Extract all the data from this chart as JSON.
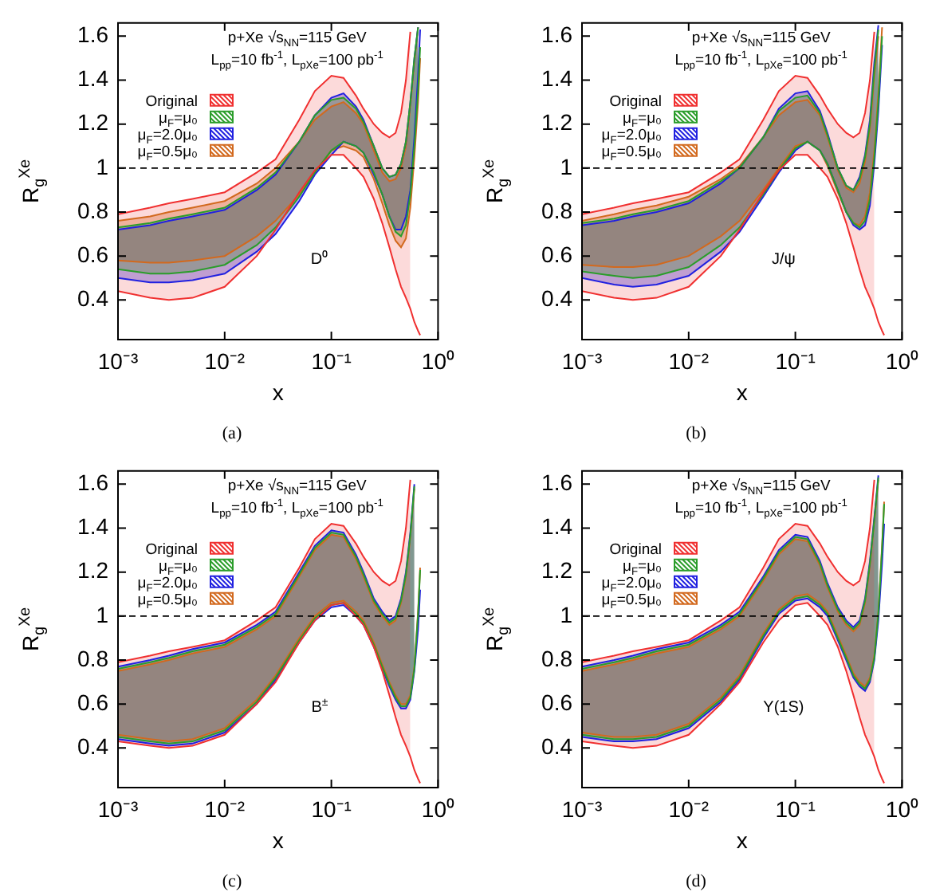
{
  "chart_data": [
    {
      "type": "line",
      "xlabel": "x",
      "ylabel": "R$_{g}$$^{Xe}$",
      "log": "x",
      "grid": false,
      "legend": "top left",
      "xlim": [
        0.001,
        1
      ],
      "ylim": [
        0.22,
        1.66
      ],
      "xticks": [
        {
          "value": 0.001,
          "label": "10⁻³"
        },
        {
          "value": 0.01,
          "label": "10⁻²"
        },
        {
          "value": 0.1,
          "label": "10⁻¹"
        },
        {
          "value": 1,
          "label": "10⁰"
        }
      ],
      "yticks": [
        0.4,
        0.6,
        0.8,
        1,
        1.2,
        1.4,
        1.6
      ],
      "annotations": [
        "p+Xe √s$_{NN}$=115 GeV",
        "L$_{pp}$=10 fb$^{-1}$, L$_{pXe}$=100 pb$^{-1}$",
        "D⁰",
        "(a)"
      ],
      "ref_lines": [
        {
          "axis": "y",
          "value": 1,
          "color": "#000000",
          "line_style": "dashed"
        }
      ],
      "x": [
        0.001,
        0.002,
        0.003,
        0.005,
        0.01,
        0.02,
        0.03,
        0.05,
        0.07,
        0.1,
        0.13,
        0.17,
        0.2,
        0.25,
        0.3,
        0.35,
        0.4,
        0.45,
        0.5,
        0.55,
        0.6,
        0.65,
        0.68
      ],
      "series": [
        {
          "color": "#f03030",
          "values": [
            0.44,
            0.41,
            0.4,
            0.41,
            0.46,
            0.6,
            0.72,
            0.89,
            0.99,
            1.06,
            1.06,
            1.0,
            0.96,
            0.86,
            0.75,
            0.64,
            0.54,
            0.46,
            0.41,
            0.36,
            0.3,
            0.26,
            0.24
          ]
        },
        {
          "type": "area",
          "name": "Original",
          "color": "#f03030",
          "values": [
            0.79,
            0.82,
            0.84,
            0.86,
            0.89,
            0.98,
            1.04,
            1.22,
            1.35,
            1.42,
            1.41,
            1.33,
            1.27,
            1.2,
            1.16,
            1.14,
            1.16,
            1.25,
            1.4,
            1.62,
            null,
            null,
            null
          ]
        },
        {
          "color": "#2a9d2a",
          "values": [
            0.54,
            0.52,
            0.52,
            0.53,
            0.56,
            0.65,
            0.73,
            0.87,
            0.98,
            1.08,
            1.12,
            1.1,
            1.07,
            0.98,
            0.88,
            0.78,
            0.71,
            0.69,
            0.74,
            0.88,
            1.1,
            1.35,
            1.55
          ]
        },
        {
          "type": "area",
          "name": "μ$_{F}$=μ₀",
          "color": "#2a9d2a",
          "values": [
            0.73,
            0.75,
            0.77,
            0.79,
            0.82,
            0.91,
            0.98,
            1.12,
            1.24,
            1.31,
            1.32,
            1.27,
            1.21,
            1.1,
            1.0,
            0.96,
            0.97,
            1.02,
            1.12,
            1.3,
            1.5,
            1.64,
            null
          ]
        },
        {
          "color": "#2020e0",
          "values": [
            0.5,
            0.48,
            0.48,
            0.49,
            0.52,
            0.62,
            0.7,
            0.85,
            0.97,
            1.06,
            1.12,
            1.1,
            1.07,
            0.97,
            0.88,
            0.78,
            0.72,
            0.72,
            0.78,
            0.9,
            1.14,
            1.42,
            1.63
          ]
        },
        {
          "type": "area",
          "name": "μ$_{F}$=2.0μ₀",
          "color": "#2020e0",
          "values": [
            0.72,
            0.74,
            0.76,
            0.78,
            0.81,
            0.9,
            0.97,
            1.12,
            1.24,
            1.32,
            1.34,
            1.28,
            1.22,
            1.1,
            1.0,
            0.96,
            0.97,
            1.02,
            1.12,
            1.3,
            1.5,
            1.64,
            null
          ]
        },
        {
          "color": "#d2691e",
          "values": [
            0.58,
            0.57,
            0.57,
            0.58,
            0.6,
            0.69,
            0.76,
            0.88,
            0.98,
            1.08,
            1.1,
            1.08,
            1.05,
            0.95,
            0.84,
            0.74,
            0.67,
            0.64,
            0.68,
            0.82,
            1.05,
            1.3,
            1.5
          ]
        },
        {
          "type": "area",
          "name": "μ$_{F}$=0.5μ₀",
          "color": "#d2691e",
          "values": [
            0.76,
            0.78,
            0.8,
            0.82,
            0.85,
            0.93,
            1.0,
            1.12,
            1.22,
            1.28,
            1.3,
            1.25,
            1.2,
            1.08,
            0.98,
            0.94,
            0.95,
            1.0,
            1.1,
            1.28,
            1.48,
            1.64,
            null
          ]
        }
      ]
    },
    {
      "type": "line",
      "xlabel": "x",
      "ylabel": "R$_{g}$$^{Xe}$",
      "log": "x",
      "grid": false,
      "legend": "top left",
      "xlim": [
        0.001,
        1
      ],
      "ylim": [
        0.22,
        1.66
      ],
      "xticks": [
        {
          "value": 0.001,
          "label": "10⁻³"
        },
        {
          "value": 0.01,
          "label": "10⁻²"
        },
        {
          "value": 0.1,
          "label": "10⁻¹"
        },
        {
          "value": 1,
          "label": "10⁰"
        }
      ],
      "yticks": [
        0.4,
        0.6,
        0.8,
        1,
        1.2,
        1.4,
        1.6
      ],
      "annotations": [
        "p+Xe √s$_{NN}$=115 GeV",
        "L$_{pp}$=10 fb$^{-1}$, L$_{pXe}$=100 pb$^{-1}$",
        "J/ψ",
        "(b)"
      ],
      "ref_lines": [
        {
          "axis": "y",
          "value": 1,
          "color": "#000000",
          "line_style": "dashed"
        }
      ],
      "x": [
        0.001,
        0.002,
        0.003,
        0.005,
        0.01,
        0.02,
        0.03,
        0.05,
        0.07,
        0.1,
        0.13,
        0.17,
        0.2,
        0.25,
        0.3,
        0.35,
        0.4,
        0.45,
        0.5,
        0.55,
        0.6,
        0.65,
        0.68
      ],
      "series": [
        {
          "color": "#f03030",
          "values": [
            0.44,
            0.41,
            0.4,
            0.41,
            0.46,
            0.6,
            0.72,
            0.89,
            0.99,
            1.06,
            1.06,
            1.0,
            0.96,
            0.86,
            0.75,
            0.64,
            0.54,
            0.46,
            0.41,
            0.36,
            0.3,
            0.26,
            0.24
          ]
        },
        {
          "type": "area",
          "name": "Original",
          "color": "#f03030",
          "values": [
            0.79,
            0.82,
            0.84,
            0.86,
            0.89,
            0.98,
            1.04,
            1.22,
            1.35,
            1.42,
            1.41,
            1.33,
            1.27,
            1.2,
            1.16,
            1.14,
            1.16,
            1.25,
            1.4,
            1.62,
            null,
            null,
            null
          ]
        },
        {
          "color": "#2a9d2a",
          "values": [
            0.53,
            0.51,
            0.5,
            0.51,
            0.55,
            0.65,
            0.73,
            0.88,
            0.99,
            1.09,
            1.12,
            1.08,
            1.02,
            0.9,
            0.8,
            0.75,
            0.73,
            0.76,
            0.86,
            1.05,
            1.3,
            1.6,
            null
          ]
        },
        {
          "type": "area",
          "name": "μ$_{F}$=μ₀",
          "color": "#2a9d2a",
          "values": [
            0.75,
            0.77,
            0.79,
            0.81,
            0.85,
            0.94,
            1.0,
            1.14,
            1.26,
            1.32,
            1.33,
            1.25,
            1.15,
            1.0,
            0.92,
            0.9,
            0.95,
            1.05,
            1.2,
            1.45,
            1.63,
            null,
            null
          ]
        },
        {
          "color": "#2020e0",
          "values": [
            0.5,
            0.47,
            0.46,
            0.47,
            0.51,
            0.62,
            0.71,
            0.87,
            0.98,
            1.08,
            1.12,
            1.08,
            1.02,
            0.9,
            0.8,
            0.74,
            0.72,
            0.74,
            0.83,
            1.02,
            1.26,
            1.56,
            null
          ]
        },
        {
          "type": "area",
          "name": "μ$_{F}$=2.0μ₀",
          "color": "#2020e0",
          "values": [
            0.74,
            0.76,
            0.78,
            0.8,
            0.84,
            0.93,
            1.0,
            1.14,
            1.27,
            1.34,
            1.35,
            1.26,
            1.16,
            1.0,
            0.92,
            0.9,
            0.96,
            1.06,
            1.22,
            1.48,
            1.65,
            null,
            null
          ]
        },
        {
          "color": "#d2691e",
          "values": [
            0.56,
            0.55,
            0.55,
            0.56,
            0.6,
            0.69,
            0.76,
            0.9,
            1.0,
            1.1,
            1.12,
            1.08,
            1.01,
            0.89,
            0.8,
            0.75,
            0.74,
            0.78,
            0.89,
            1.08,
            1.34,
            1.64,
            null
          ]
        },
        {
          "type": "area",
          "name": "μ$_{F}$=0.5μ₀",
          "color": "#d2691e",
          "values": [
            0.76,
            0.79,
            0.81,
            0.83,
            0.87,
            0.95,
            1.01,
            1.14,
            1.24,
            1.3,
            1.31,
            1.24,
            1.14,
            0.99,
            0.91,
            0.89,
            0.93,
            1.03,
            1.18,
            1.42,
            1.6,
            null,
            null
          ]
        }
      ]
    },
    {
      "type": "line",
      "xlabel": "x",
      "ylabel": "R$_{g}$$^{Xe}$",
      "log": "x",
      "grid": false,
      "legend": "top left",
      "xlim": [
        0.001,
        1
      ],
      "ylim": [
        0.22,
        1.66
      ],
      "xticks": [
        {
          "value": 0.001,
          "label": "10⁻³"
        },
        {
          "value": 0.01,
          "label": "10⁻²"
        },
        {
          "value": 0.1,
          "label": "10⁻¹"
        },
        {
          "value": 1,
          "label": "10⁰"
        }
      ],
      "yticks": [
        0.4,
        0.6,
        0.8,
        1,
        1.2,
        1.4,
        1.6
      ],
      "annotations": [
        "p+Xe √s$_{NN}$=115 GeV",
        "L$_{pp}$=10 fb$^{-1}$, L$_{pXe}$=100 pb$^{-1}$",
        "B$^{±}$",
        "(c)"
      ],
      "ref_lines": [
        {
          "axis": "y",
          "value": 1,
          "color": "#000000",
          "line_style": "dashed"
        }
      ],
      "x": [
        0.001,
        0.002,
        0.003,
        0.005,
        0.01,
        0.02,
        0.03,
        0.05,
        0.07,
        0.1,
        0.13,
        0.17,
        0.2,
        0.25,
        0.3,
        0.35,
        0.4,
        0.45,
        0.5,
        0.55,
        0.6,
        0.65,
        0.68
      ],
      "series": [
        {
          "color": "#f03030",
          "values": [
            0.43,
            0.41,
            0.4,
            0.41,
            0.46,
            0.6,
            0.7,
            0.88,
            0.98,
            1.05,
            1.06,
            1.0,
            0.96,
            0.86,
            0.75,
            0.64,
            0.54,
            0.46,
            0.41,
            0.36,
            0.3,
            0.26,
            0.24
          ]
        },
        {
          "type": "area",
          "name": "Original",
          "color": "#f03030",
          "values": [
            0.79,
            0.82,
            0.84,
            0.86,
            0.89,
            0.98,
            1.04,
            1.22,
            1.35,
            1.42,
            1.41,
            1.33,
            1.27,
            1.2,
            1.16,
            1.14,
            1.16,
            1.25,
            1.4,
            1.62,
            null,
            null,
            null
          ]
        },
        {
          "color": "#2a9d2a",
          "values": [
            0.45,
            0.43,
            0.42,
            0.43,
            0.48,
            0.61,
            0.72,
            0.89,
            0.99,
            1.05,
            1.06,
            1.01,
            0.97,
            0.87,
            0.77,
            0.69,
            0.63,
            0.59,
            0.59,
            0.63,
            0.76,
            1.01,
            1.21
          ]
        },
        {
          "type": "area",
          "name": "μ$_{F}$=μ₀",
          "color": "#2a9d2a",
          "values": [
            0.76,
            0.79,
            0.81,
            0.84,
            0.87,
            0.95,
            1.01,
            1.19,
            1.31,
            1.38,
            1.37,
            1.27,
            1.19,
            1.07,
            1.01,
            0.97,
            0.99,
            1.07,
            1.19,
            1.37,
            1.59,
            null,
            null
          ]
        },
        {
          "color": "#2020e0",
          "values": [
            0.44,
            0.42,
            0.41,
            0.42,
            0.47,
            0.6,
            0.71,
            0.88,
            0.98,
            1.04,
            1.05,
            1.0,
            0.96,
            0.86,
            0.76,
            0.68,
            0.62,
            0.58,
            0.58,
            0.62,
            0.75,
            0.94,
            1.12
          ]
        },
        {
          "type": "area",
          "name": "μ$_{F}$=2.0μ₀",
          "color": "#2020e0",
          "values": [
            0.77,
            0.8,
            0.82,
            0.85,
            0.88,
            0.96,
            1.02,
            1.2,
            1.32,
            1.39,
            1.38,
            1.28,
            1.2,
            1.08,
            1.02,
            0.98,
            1.0,
            1.08,
            1.2,
            1.38,
            1.6,
            null,
            null
          ]
        },
        {
          "color": "#d2691e",
          "values": [
            0.46,
            0.44,
            0.43,
            0.44,
            0.49,
            0.62,
            0.73,
            0.9,
            1.0,
            1.06,
            1.07,
            1.02,
            0.98,
            0.88,
            0.78,
            0.7,
            0.64,
            0.6,
            0.6,
            0.64,
            0.77,
            1.02,
            1.22
          ]
        },
        {
          "type": "area",
          "name": "μ$_{F}$=0.5μ₀",
          "color": "#d2691e",
          "values": [
            0.75,
            0.78,
            0.8,
            0.83,
            0.86,
            0.94,
            1.0,
            1.18,
            1.3,
            1.37,
            1.36,
            1.26,
            1.18,
            1.06,
            1.0,
            0.96,
            0.98,
            1.06,
            1.18,
            1.36,
            1.58,
            null,
            null
          ]
        }
      ]
    },
    {
      "type": "line",
      "xlabel": "x",
      "ylabel": "R$_{g}$$^{Xe}$",
      "log": "x",
      "grid": false,
      "legend": "top left",
      "xlim": [
        0.001,
        1
      ],
      "ylim": [
        0.22,
        1.66
      ],
      "xticks": [
        {
          "value": 0.001,
          "label": "10⁻³"
        },
        {
          "value": 0.01,
          "label": "10⁻²"
        },
        {
          "value": 0.1,
          "label": "10⁻¹"
        },
        {
          "value": 1,
          "label": "10⁰"
        }
      ],
      "yticks": [
        0.4,
        0.6,
        0.8,
        1,
        1.2,
        1.4,
        1.6
      ],
      "annotations": [
        "p+Xe √s$_{NN}$=115 GeV",
        "L$_{pp}$=10 fb$^{-1}$, L$_{pXe}$=100 pb$^{-1}$",
        "Υ(1S)",
        "(d)"
      ],
      "ref_lines": [
        {
          "axis": "y",
          "value": 1,
          "color": "#000000",
          "line_style": "dashed"
        }
      ],
      "x": [
        0.001,
        0.002,
        0.003,
        0.005,
        0.01,
        0.02,
        0.03,
        0.05,
        0.07,
        0.1,
        0.13,
        0.17,
        0.2,
        0.25,
        0.3,
        0.35,
        0.4,
        0.45,
        0.5,
        0.55,
        0.6,
        0.65,
        0.68
      ],
      "series": [
        {
          "color": "#f03030",
          "values": [
            0.43,
            0.41,
            0.4,
            0.41,
            0.46,
            0.6,
            0.7,
            0.88,
            0.98,
            1.05,
            1.06,
            1.0,
            0.96,
            0.86,
            0.75,
            0.64,
            0.54,
            0.46,
            0.41,
            0.36,
            0.3,
            0.26,
            0.24
          ]
        },
        {
          "type": "area",
          "name": "Original",
          "color": "#f03030",
          "values": [
            0.79,
            0.82,
            0.84,
            0.86,
            0.89,
            0.98,
            1.04,
            1.22,
            1.35,
            1.42,
            1.41,
            1.33,
            1.27,
            1.2,
            1.16,
            1.14,
            1.16,
            1.25,
            1.4,
            1.62,
            null,
            null,
            null
          ]
        },
        {
          "color": "#2a9d2a",
          "values": [
            0.46,
            0.44,
            0.44,
            0.45,
            0.5,
            0.62,
            0.72,
            0.91,
            1.02,
            1.08,
            1.09,
            1.05,
            1.01,
            0.9,
            0.81,
            0.73,
            0.69,
            0.67,
            0.71,
            0.81,
            1.01,
            1.31,
            1.51
          ]
        },
        {
          "type": "area",
          "name": "μ$_{F}$=μ₀",
          "color": "#2a9d2a",
          "values": [
            0.76,
            0.79,
            0.81,
            0.84,
            0.87,
            0.95,
            1.01,
            1.17,
            1.29,
            1.36,
            1.35,
            1.24,
            1.14,
            1.03,
            0.97,
            0.94,
            0.97,
            1.07,
            1.24,
            1.44,
            1.63,
            null,
            null
          ]
        },
        {
          "color": "#2020e0",
          "values": [
            0.45,
            0.43,
            0.43,
            0.44,
            0.49,
            0.61,
            0.71,
            0.9,
            1.01,
            1.07,
            1.08,
            1.04,
            1.0,
            0.89,
            0.8,
            0.72,
            0.68,
            0.66,
            0.7,
            0.8,
            0.98,
            1.24,
            1.42
          ]
        },
        {
          "type": "area",
          "name": "μ$_{F}$=2.0μ₀",
          "color": "#2020e0",
          "values": [
            0.77,
            0.8,
            0.82,
            0.85,
            0.88,
            0.96,
            1.02,
            1.18,
            1.3,
            1.37,
            1.36,
            1.25,
            1.15,
            1.04,
            0.98,
            0.95,
            0.98,
            1.08,
            1.25,
            1.45,
            1.64,
            null,
            null
          ]
        },
        {
          "color": "#d2691e",
          "values": [
            0.47,
            0.45,
            0.45,
            0.46,
            0.51,
            0.63,
            0.73,
            0.92,
            1.03,
            1.09,
            1.1,
            1.06,
            1.02,
            0.91,
            0.82,
            0.74,
            0.7,
            0.68,
            0.72,
            0.82,
            1.02,
            1.32,
            1.52
          ]
        },
        {
          "type": "area",
          "name": "μ$_{F}$=0.5μ₀",
          "color": "#d2691e",
          "values": [
            0.75,
            0.78,
            0.8,
            0.83,
            0.86,
            0.94,
            1.0,
            1.16,
            1.28,
            1.35,
            1.34,
            1.23,
            1.13,
            1.02,
            0.96,
            0.93,
            0.96,
            1.06,
            1.23,
            1.43,
            1.62,
            null,
            null
          ]
        }
      ]
    }
  ]
}
